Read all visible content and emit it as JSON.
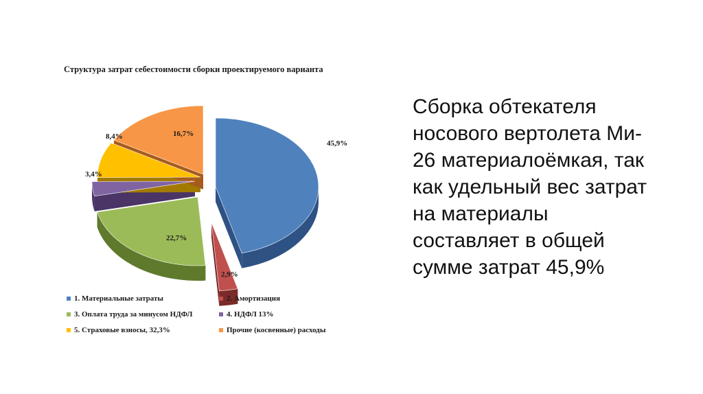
{
  "chart_data": {
    "type": "pie",
    "title": "Структура затрат себестоимости сборки проектируемого варианта",
    "slices": [
      {
        "name": "1. Материальные затраты",
        "label": "45,9%",
        "value": 45.9,
        "color": "#4f81bd",
        "side": "#2e5284"
      },
      {
        "name": "2. Амортизация",
        "label": "2,9%",
        "value": 2.9,
        "color": "#c0504d",
        "side": "#7a2a28"
      },
      {
        "name": "3. Оплата труда за минусом НДФЛ",
        "label": "22,7%",
        "value": 22.7,
        "color": "#9bbb59",
        "side": "#5f7a2c"
      },
      {
        "name": "4. НДФЛ 13%",
        "label": "3,4%",
        "value": 3.4,
        "color": "#8064a2",
        "side": "#4a3566"
      },
      {
        "name": "5. Страховые взносы, 32,3%",
        "label": "8,4%",
        "value": 8.4,
        "color": "#ffc000",
        "side": "#a37a00"
      },
      {
        "name": "Прочие (косвенные) расходы",
        "label": "16,7%",
        "value": 16.7,
        "color": "#f79646",
        "side": "#a85c1c"
      }
    ],
    "legend_placement": "bottom"
  },
  "side_text": {
    "lines": [
      "Сборка обтекателя",
      "носового вертолета Ми-",
      "26 материалоёмкая, так",
      "как  удельный вес затрат",
      "на  материалы",
      "составляет в общей",
      "сумме затрат 45,9%"
    ]
  }
}
